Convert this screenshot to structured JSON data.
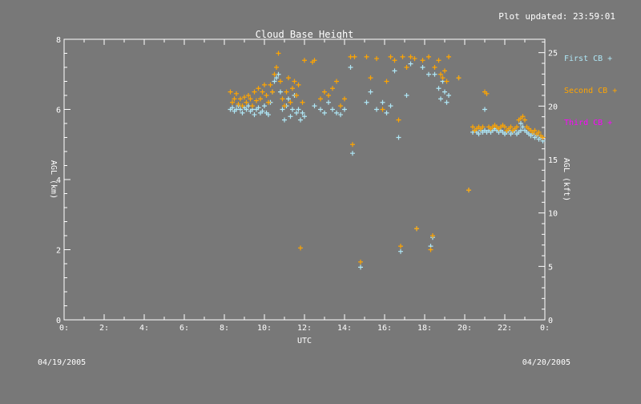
{
  "header": {
    "updated_label": "Plot updated: 23:59:01"
  },
  "footer": {
    "start_date": "04/19/2005",
    "end_date": "04/20/2005"
  },
  "colors": {
    "background": "#787878",
    "axes": "#ffffff",
    "first_cb": "#aee6f5",
    "second_cb": "#ffa500",
    "third_cb": "#ff00ff"
  },
  "chart_data": {
    "type": "scatter",
    "title": "Cloud Base Height",
    "xlabel": "UTC",
    "ylabel": "AGL (km)",
    "y2label": "AGL (kft)",
    "xlim": [
      0,
      24
    ],
    "ylim": [
      0,
      8
    ],
    "y2lim": [
      0,
      26.25
    ],
    "x_ticks": [
      "0:",
      "2:",
      "4:",
      "6:",
      "8:",
      "10:",
      "12:",
      "14:",
      "16:",
      "18:",
      "20:",
      "22:",
      "0:"
    ],
    "y_ticks": [
      "0",
      "2",
      "4",
      "6",
      "8"
    ],
    "y2_ticks": [
      "0",
      "5",
      "10",
      "15",
      "20",
      "25"
    ],
    "legend_position": "right",
    "series": [
      {
        "name": "First CB +",
        "color": "#aee6f5",
        "points": [
          [
            8.3,
            6.0
          ],
          [
            8.4,
            6.05
          ],
          [
            8.5,
            5.95
          ],
          [
            8.6,
            6.0
          ],
          [
            8.7,
            6.1
          ],
          [
            8.8,
            6.0
          ],
          [
            8.9,
            5.9
          ],
          [
            9.0,
            6.05
          ],
          [
            9.1,
            6.0
          ],
          [
            9.2,
            6.1
          ],
          [
            9.3,
            5.95
          ],
          [
            9.4,
            6.0
          ],
          [
            9.5,
            5.85
          ],
          [
            9.6,
            6.0
          ],
          [
            9.7,
            6.05
          ],
          [
            9.8,
            5.9
          ],
          [
            9.9,
            5.95
          ],
          [
            10.0,
            6.1
          ],
          [
            10.1,
            5.9
          ],
          [
            10.2,
            5.85
          ],
          [
            10.3,
            6.2
          ],
          [
            10.4,
            6.5
          ],
          [
            10.5,
            6.8
          ],
          [
            10.6,
            6.9
          ],
          [
            10.7,
            7.0
          ],
          [
            10.8,
            6.5
          ],
          [
            10.9,
            6.0
          ],
          [
            11.0,
            5.7
          ],
          [
            11.1,
            6.1
          ],
          [
            11.2,
            6.3
          ],
          [
            11.3,
            5.8
          ],
          [
            11.4,
            6.0
          ],
          [
            11.5,
            6.4
          ],
          [
            11.6,
            5.9
          ],
          [
            11.7,
            6.0
          ],
          [
            11.8,
            5.7
          ],
          [
            11.9,
            5.9
          ],
          [
            12.0,
            5.8
          ],
          [
            12.5,
            6.1
          ],
          [
            12.8,
            6.0
          ],
          [
            13.0,
            5.9
          ],
          [
            13.2,
            6.2
          ],
          [
            13.4,
            6.0
          ],
          [
            13.6,
            5.9
          ],
          [
            13.8,
            5.85
          ],
          [
            14.0,
            6.0
          ],
          [
            14.3,
            7.2
          ],
          [
            14.4,
            4.75
          ],
          [
            14.8,
            1.5
          ],
          [
            15.1,
            6.2
          ],
          [
            15.3,
            6.5
          ],
          [
            15.6,
            6.0
          ],
          [
            15.9,
            6.2
          ],
          [
            16.1,
            5.9
          ],
          [
            16.3,
            6.1
          ],
          [
            16.5,
            7.1
          ],
          [
            16.7,
            5.2
          ],
          [
            16.8,
            1.95
          ],
          [
            17.1,
            6.4
          ],
          [
            17.3,
            7.3
          ],
          [
            17.6,
            2.6
          ],
          [
            17.9,
            7.2
          ],
          [
            18.2,
            7.0
          ],
          [
            18.3,
            2.1
          ],
          [
            18.4,
            2.35
          ],
          [
            18.5,
            7.0
          ],
          [
            18.7,
            6.6
          ],
          [
            18.8,
            6.3
          ],
          [
            18.9,
            6.8
          ],
          [
            19.0,
            6.5
          ],
          [
            19.1,
            6.2
          ],
          [
            19.2,
            6.4
          ],
          [
            19.7,
            6.9
          ],
          [
            20.2,
            3.7
          ],
          [
            20.4,
            5.35
          ],
          [
            20.5,
            5.4
          ],
          [
            20.6,
            5.35
          ],
          [
            20.7,
            5.3
          ],
          [
            20.8,
            5.4
          ],
          [
            20.9,
            5.35
          ],
          [
            21.0,
            5.4
          ],
          [
            21.1,
            5.35
          ],
          [
            21.2,
            5.4
          ],
          [
            21.3,
            5.35
          ],
          [
            21.4,
            5.4
          ],
          [
            21.5,
            5.45
          ],
          [
            21.6,
            5.4
          ],
          [
            21.7,
            5.35
          ],
          [
            21.8,
            5.4
          ],
          [
            21.9,
            5.35
          ],
          [
            22.0,
            5.3
          ],
          [
            22.1,
            5.35
          ],
          [
            22.2,
            5.4
          ],
          [
            22.3,
            5.3
          ],
          [
            22.4,
            5.35
          ],
          [
            22.5,
            5.4
          ],
          [
            22.6,
            5.3
          ],
          [
            22.7,
            5.35
          ],
          [
            22.8,
            5.4
          ],
          [
            22.9,
            5.5
          ],
          [
            23.0,
            5.4
          ],
          [
            23.1,
            5.35
          ],
          [
            23.2,
            5.3
          ],
          [
            23.3,
            5.25
          ],
          [
            23.4,
            5.3
          ],
          [
            23.5,
            5.2
          ],
          [
            23.6,
            5.25
          ],
          [
            23.7,
            5.15
          ],
          [
            23.8,
            5.2
          ],
          [
            23.9,
            5.1
          ],
          [
            21.0,
            6.0
          ],
          [
            22.8,
            5.6
          ]
        ]
      },
      {
        "name": "Second CB +",
        "color": "#ffa500",
        "points": [
          [
            8.3,
            6.5
          ],
          [
            8.4,
            6.2
          ],
          [
            8.5,
            6.3
          ],
          [
            8.6,
            6.45
          ],
          [
            8.7,
            6.15
          ],
          [
            8.8,
            6.3
          ],
          [
            8.9,
            6.1
          ],
          [
            9.0,
            6.35
          ],
          [
            9.1,
            6.2
          ],
          [
            9.2,
            6.4
          ],
          [
            9.3,
            6.3
          ],
          [
            9.4,
            6.1
          ],
          [
            9.5,
            6.5
          ],
          [
            9.6,
            6.25
          ],
          [
            9.7,
            6.6
          ],
          [
            9.8,
            6.3
          ],
          [
            9.9,
            6.5
          ],
          [
            10.0,
            6.7
          ],
          [
            10.1,
            6.4
          ],
          [
            10.2,
            6.2
          ],
          [
            10.3,
            6.7
          ],
          [
            10.4,
            6.5
          ],
          [
            10.5,
            7.0
          ],
          [
            10.6,
            7.2
          ],
          [
            10.7,
            7.6
          ],
          [
            10.8,
            6.8
          ],
          [
            10.9,
            6.3
          ],
          [
            11.0,
            6.1
          ],
          [
            11.1,
            6.5
          ],
          [
            11.2,
            6.9
          ],
          [
            11.3,
            6.2
          ],
          [
            11.4,
            6.6
          ],
          [
            11.5,
            6.8
          ],
          [
            11.6,
            6.4
          ],
          [
            11.7,
            6.7
          ],
          [
            11.8,
            2.05
          ],
          [
            11.9,
            6.2
          ],
          [
            12.0,
            7.4
          ],
          [
            12.5,
            7.4
          ],
          [
            12.8,
            6.3
          ],
          [
            13.0,
            6.5
          ],
          [
            13.2,
            6.4
          ],
          [
            13.4,
            6.6
          ],
          [
            13.6,
            6.8
          ],
          [
            13.8,
            6.1
          ],
          [
            14.0,
            6.3
          ],
          [
            14.3,
            7.5
          ],
          [
            14.4,
            5.0
          ],
          [
            14.8,
            1.65
          ],
          [
            15.1,
            7.5
          ],
          [
            15.3,
            6.9
          ],
          [
            15.6,
            7.45
          ],
          [
            15.9,
            6.0
          ],
          [
            16.1,
            6.8
          ],
          [
            16.3,
            7.5
          ],
          [
            16.5,
            7.4
          ],
          [
            16.7,
            5.7
          ],
          [
            16.8,
            2.1
          ],
          [
            17.1,
            7.2
          ],
          [
            17.3,
            7.5
          ],
          [
            17.6,
            2.6
          ],
          [
            17.9,
            7.4
          ],
          [
            18.2,
            7.5
          ],
          [
            18.3,
            2.0
          ],
          [
            18.4,
            2.4
          ],
          [
            18.5,
            7.2
          ],
          [
            18.7,
            7.4
          ],
          [
            18.8,
            7.0
          ],
          [
            18.9,
            6.9
          ],
          [
            19.0,
            7.1
          ],
          [
            19.1,
            6.8
          ],
          [
            19.2,
            7.5
          ],
          [
            19.7,
            6.9
          ],
          [
            20.2,
            3.7
          ],
          [
            20.4,
            5.5
          ],
          [
            20.5,
            5.4
          ],
          [
            20.6,
            5.45
          ],
          [
            20.7,
            5.5
          ],
          [
            20.8,
            5.45
          ],
          [
            20.9,
            5.5
          ],
          [
            21.0,
            6.5
          ],
          [
            21.1,
            6.45
          ],
          [
            21.2,
            5.5
          ],
          [
            21.3,
            5.45
          ],
          [
            21.4,
            5.5
          ],
          [
            21.5,
            5.55
          ],
          [
            21.6,
            5.5
          ],
          [
            21.7,
            5.45
          ],
          [
            21.8,
            5.5
          ],
          [
            21.9,
            5.55
          ],
          [
            22.0,
            5.5
          ],
          [
            22.1,
            5.4
          ],
          [
            22.2,
            5.45
          ],
          [
            22.3,
            5.5
          ],
          [
            22.4,
            5.4
          ],
          [
            22.5,
            5.45
          ],
          [
            22.6,
            5.5
          ],
          [
            22.7,
            5.7
          ],
          [
            22.8,
            5.75
          ],
          [
            22.9,
            5.8
          ],
          [
            23.0,
            5.7
          ],
          [
            23.1,
            5.5
          ],
          [
            23.2,
            5.45
          ],
          [
            23.3,
            5.4
          ],
          [
            23.4,
            5.35
          ],
          [
            23.5,
            5.4
          ],
          [
            23.6,
            5.3
          ],
          [
            23.7,
            5.35
          ],
          [
            23.8,
            5.25
          ],
          [
            23.9,
            5.2
          ],
          [
            16.9,
            7.5
          ],
          [
            17.5,
            7.45
          ],
          [
            14.5,
            7.5
          ],
          [
            12.4,
            7.35
          ]
        ]
      },
      {
        "name": "Third CB +",
        "color": "#ff00ff",
        "points": []
      }
    ]
  }
}
